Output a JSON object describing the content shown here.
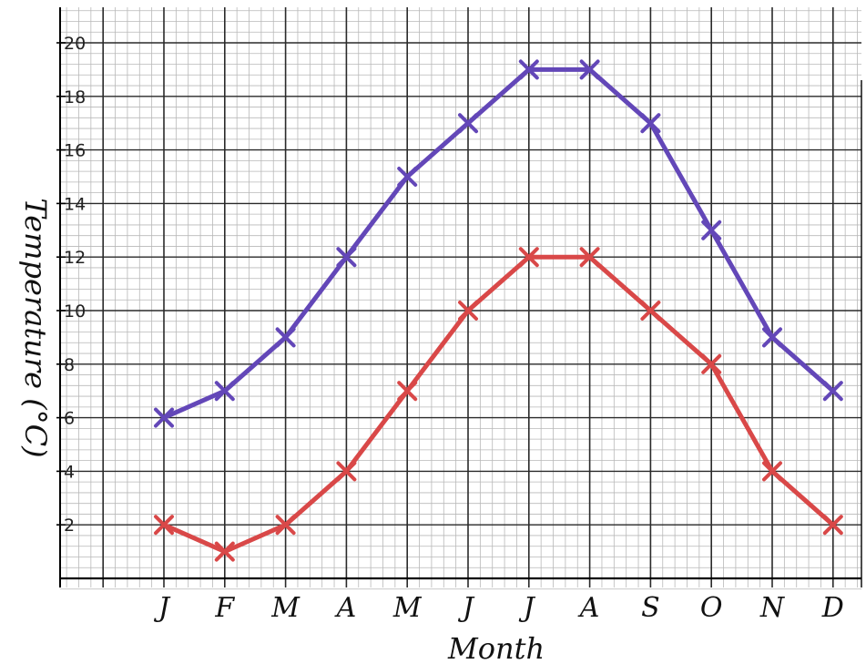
{
  "chart_data": {
    "type": "line",
    "categories": [
      "J",
      "F",
      "M",
      "A",
      "M",
      "J",
      "J",
      "A",
      "S",
      "O",
      "N",
      "D"
    ],
    "series": [
      {
        "values": [
          6,
          7,
          9,
          12,
          15,
          17,
          19,
          19,
          17,
          13,
          9,
          7
        ],
        "color": "#6347b8"
      },
      {
        "values": [
          2,
          1,
          2,
          4,
          7,
          10,
          12,
          12,
          10,
          8,
          4,
          2
        ],
        "color": "#d94848"
      }
    ],
    "xlabel": "Month",
    "ylabel": "Temperature (°C)",
    "ylim": [
      0,
      20
    ],
    "yticks": [
      2,
      4,
      6,
      8,
      10,
      12,
      14,
      16,
      18,
      20
    ],
    "marker": "x",
    "grid": true
  }
}
